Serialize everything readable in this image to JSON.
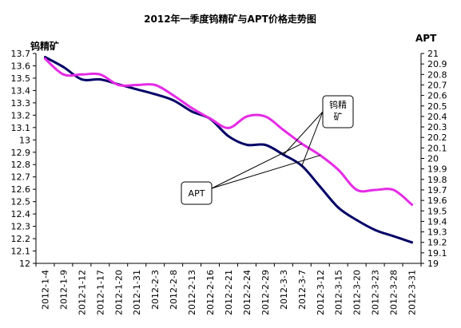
{
  "chart_data": {
    "type": "line",
    "title": "2012年一季度钨精矿与APT价格走势图",
    "x": [
      "2012-1-4",
      "2012-1-9",
      "2012-1-12",
      "2012-1-17",
      "2012-1-20",
      "2012-1-31",
      "2012-2-3",
      "2012-2-8",
      "2012-2-13",
      "2012-2-16",
      "2012-2-21",
      "2012-2-24",
      "2012-2-29",
      "2012-3-3",
      "2012-3-7",
      "2012-3-12",
      "2012-3-15",
      "2012-3-20",
      "2012-3-23",
      "2012-3-28",
      "2012-3-31"
    ],
    "y_left": {
      "label": "钨精矿",
      "ylim": [
        12,
        13.7
      ],
      "ticks": [
        12,
        12.1,
        12.2,
        12.3,
        12.4,
        12.5,
        12.6,
        12.7,
        12.8,
        12.9,
        13,
        13.1,
        13.2,
        13.3,
        13.4,
        13.5,
        13.6,
        13.7
      ]
    },
    "y_right": {
      "label": "APT",
      "ylim": [
        19,
        21
      ],
      "ticks": [
        19,
        19.1,
        19.2,
        19.3,
        19.4,
        19.5,
        19.6,
        19.7,
        19.8,
        19.9,
        20,
        20.1,
        20.2,
        20.3,
        20.4,
        20.5,
        20.6,
        20.7,
        20.8,
        20.9,
        21
      ]
    },
    "grid": false,
    "series": [
      {
        "name": "钨精矿",
        "axis": "left",
        "color": "#000066",
        "values": [
          13.67,
          13.59,
          13.49,
          13.49,
          13.45,
          13.41,
          13.37,
          13.32,
          13.23,
          13.17,
          13.03,
          12.96,
          12.96,
          12.88,
          12.79,
          12.62,
          12.45,
          12.35,
          12.27,
          12.22,
          12.17
        ]
      },
      {
        "name": "APT",
        "axis": "right",
        "color": "#E52BE5",
        "values": [
          20.95,
          20.8,
          20.8,
          20.8,
          20.7,
          20.7,
          20.7,
          20.6,
          20.48,
          20.38,
          20.29,
          20.4,
          20.4,
          20.27,
          20.14,
          20.03,
          19.89,
          19.7,
          19.7,
          19.7,
          19.56
        ]
      }
    ],
    "annotations": [
      {
        "text": "钨精矿",
        "target_series": "钨精矿"
      },
      {
        "text": "APT",
        "target_series": "APT"
      }
    ]
  }
}
